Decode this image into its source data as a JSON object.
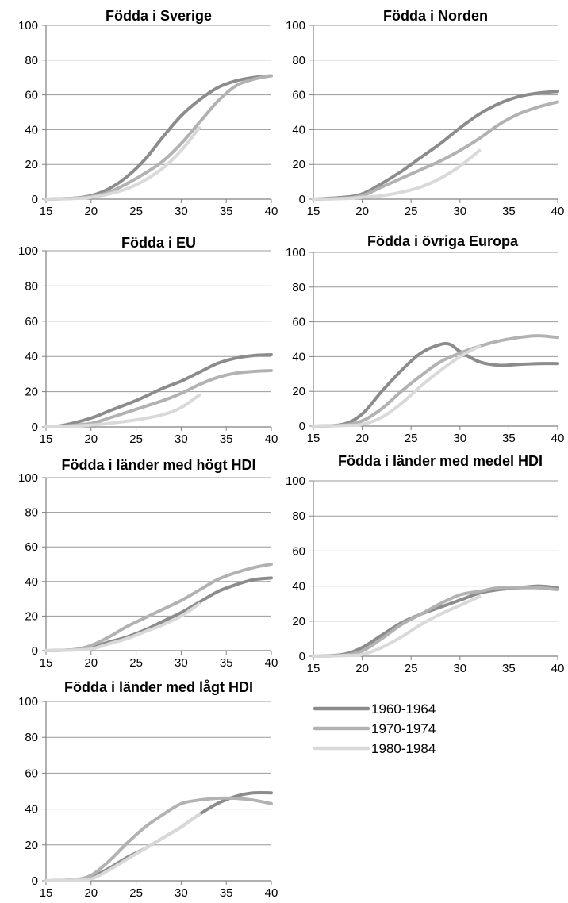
{
  "series_styles": [
    {
      "name": "1960-1964",
      "color": "#8c8c8c"
    },
    {
      "name": "1970-1974",
      "color": "#b2b2b2"
    },
    {
      "name": "1980-1984",
      "color": "#d9d9d9"
    }
  ],
  "legend": {
    "placement": "bottom-right",
    "items": [
      "1960-1964",
      "1970-1974",
      "1980-1984"
    ]
  },
  "chart_data": [
    {
      "type": "line",
      "title": "Födda i Sverige",
      "xlim": [
        15,
        40
      ],
      "ylim": [
        0,
        100
      ],
      "xticks": [
        15,
        20,
        25,
        30,
        35,
        40
      ],
      "yticks": [
        0,
        20,
        40,
        60,
        80,
        100
      ],
      "grid": true,
      "series": [
        {
          "name": "1960-1964",
          "x": [
            15,
            18,
            20,
            22,
            24,
            26,
            28,
            30,
            32,
            34,
            36,
            38,
            40
          ],
          "y": [
            0,
            0.5,
            2,
            6,
            13,
            23,
            36,
            48,
            57,
            64,
            68,
            70,
            71
          ]
        },
        {
          "name": "1970-1974",
          "x": [
            15,
            18,
            20,
            22,
            24,
            26,
            28,
            30,
            32,
            34,
            36,
            38,
            40
          ],
          "y": [
            0,
            0.5,
            1.5,
            4,
            9,
            15,
            22,
            32,
            44,
            56,
            65,
            69,
            71
          ]
        },
        {
          "name": "1980-1984",
          "x": [
            15,
            18,
            20,
            22,
            24,
            26,
            28,
            30,
            32
          ],
          "y": [
            0,
            0.3,
            1,
            3,
            6,
            11,
            18,
            28,
            41
          ]
        }
      ]
    },
    {
      "type": "line",
      "title": "Födda i Norden",
      "xlim": [
        15,
        40
      ],
      "ylim": [
        0,
        100
      ],
      "xticks": [
        15,
        20,
        25,
        30,
        35,
        40
      ],
      "yticks": [
        0,
        20,
        40,
        60,
        80,
        100
      ],
      "grid": true,
      "series": [
        {
          "name": "1960-1964",
          "x": [
            15,
            18,
            20,
            22,
            24,
            26,
            28,
            30,
            32,
            34,
            36,
            38,
            40
          ],
          "y": [
            0,
            1,
            3,
            9,
            16,
            24,
            32,
            41,
            49,
            55,
            59,
            61,
            62
          ]
        },
        {
          "name": "1970-1974",
          "x": [
            15,
            18,
            20,
            22,
            24,
            26,
            28,
            30,
            32,
            34,
            36,
            38,
            40
          ],
          "y": [
            0,
            0.5,
            2,
            7,
            12,
            17,
            22,
            28,
            35,
            43,
            49,
            53,
            56
          ]
        },
        {
          "name": "1980-1984",
          "x": [
            15,
            18,
            20,
            22,
            24,
            26,
            28,
            30,
            32
          ],
          "y": [
            0,
            0.3,
            1,
            2,
            4,
            7,
            12,
            19,
            28
          ]
        }
      ]
    },
    {
      "type": "line",
      "title": "Födda i EU",
      "xlim": [
        15,
        40
      ],
      "ylim": [
        0,
        100
      ],
      "xticks": [
        15,
        20,
        25,
        30,
        35,
        40
      ],
      "yticks": [
        0,
        20,
        40,
        60,
        80,
        100
      ],
      "grid": true,
      "series": [
        {
          "name": "1960-1964",
          "x": [
            15,
            17,
            20,
            22,
            25,
            28,
            30,
            32,
            34,
            36,
            38,
            40
          ],
          "y": [
            0,
            1,
            5,
            9,
            15,
            22,
            26,
            31,
            36,
            39,
            40.5,
            41
          ]
        },
        {
          "name": "1970-1974",
          "x": [
            15,
            17,
            20,
            22,
            25,
            28,
            30,
            32,
            34,
            36,
            38,
            40
          ],
          "y": [
            0,
            0.5,
            2,
            5,
            10,
            15,
            19,
            24,
            28,
            30.5,
            31.5,
            32
          ]
        },
        {
          "name": "1980-1984",
          "x": [
            15,
            17,
            20,
            22,
            25,
            28,
            30,
            32
          ],
          "y": [
            0,
            0.3,
            1,
            2,
            4,
            7,
            11,
            18
          ]
        }
      ]
    },
    {
      "type": "line",
      "title": "Födda i övriga Europa",
      "xlim": [
        15,
        40
      ],
      "ylim": [
        0,
        100
      ],
      "xticks": [
        15,
        20,
        25,
        30,
        35,
        40
      ],
      "yticks": [
        0,
        20,
        40,
        60,
        80,
        100
      ],
      "grid": true,
      "series": [
        {
          "name": "1960-1964",
          "x": [
            15,
            18,
            20,
            22,
            24,
            26,
            28,
            29,
            30,
            32,
            34,
            36,
            38,
            40
          ],
          "y": [
            0,
            1,
            7,
            20,
            32,
            42,
            47,
            47,
            43,
            37,
            35,
            35.5,
            36,
            36
          ]
        },
        {
          "name": "1970-1974",
          "x": [
            15,
            18,
            20,
            22,
            24,
            26,
            28,
            30,
            32,
            34,
            36,
            38,
            40
          ],
          "y": [
            0,
            0.5,
            3,
            10,
            20,
            29,
            37,
            42,
            46,
            49,
            51,
            52,
            51
          ]
        },
        {
          "name": "1980-1984",
          "x": [
            15,
            18,
            20,
            22,
            24,
            26,
            28,
            30,
            32
          ],
          "y": [
            0,
            0.3,
            1,
            5,
            13,
            23,
            32,
            40,
            46
          ]
        }
      ]
    },
    {
      "type": "line",
      "title": "Födda i länder med högt HDI",
      "xlim": [
        15,
        40
      ],
      "ylim": [
        0,
        100
      ],
      "xticks": [
        15,
        20,
        25,
        30,
        35,
        40
      ],
      "yticks": [
        0,
        20,
        40,
        60,
        80,
        100
      ],
      "grid": true,
      "series": [
        {
          "name": "1960-1964",
          "x": [
            15,
            18,
            20,
            22,
            24,
            26,
            28,
            30,
            32,
            34,
            36,
            38,
            40
          ],
          "y": [
            0,
            0.5,
            2,
            5,
            8,
            12,
            17,
            22,
            28,
            34,
            38,
            41,
            42
          ]
        },
        {
          "name": "1970-1974",
          "x": [
            15,
            18,
            20,
            22,
            24,
            26,
            28,
            30,
            32,
            34,
            36,
            38,
            40
          ],
          "y": [
            0,
            0.5,
            3,
            8,
            14,
            19,
            24,
            29,
            35,
            41,
            45,
            48,
            50
          ]
        },
        {
          "name": "1980-1984",
          "x": [
            15,
            18,
            20,
            22,
            24,
            26,
            28,
            30,
            32
          ],
          "y": [
            0,
            0.3,
            1,
            4,
            7,
            11,
            15,
            20,
            27
          ]
        }
      ]
    },
    {
      "type": "line",
      "title": "Födda i länder med medel HDI",
      "xlim": [
        15,
        40
      ],
      "ylim": [
        0,
        100
      ],
      "xticks": [
        15,
        20,
        25,
        30,
        35,
        40
      ],
      "yticks": [
        0,
        20,
        40,
        60,
        80,
        100
      ],
      "grid": true,
      "series": [
        {
          "name": "1960-1964",
          "x": [
            15,
            18,
            20,
            22,
            24,
            26,
            28,
            30,
            32,
            34,
            36,
            38,
            40
          ],
          "y": [
            0,
            1,
            5,
            12,
            19,
            24,
            28,
            32,
            36,
            38,
            39,
            40,
            39
          ]
        },
        {
          "name": "1970-1974",
          "x": [
            15,
            18,
            20,
            22,
            24,
            26,
            28,
            30,
            32,
            34,
            36,
            38,
            40
          ],
          "y": [
            0,
            0.5,
            3,
            10,
            18,
            24,
            30,
            35,
            37,
            39,
            39,
            39,
            38
          ]
        },
        {
          "name": "1980-1984",
          "x": [
            15,
            18,
            20,
            22,
            24,
            26,
            28,
            30,
            32
          ],
          "y": [
            0,
            0.3,
            1,
            5,
            11,
            18,
            24,
            29,
            34
          ]
        }
      ]
    },
    {
      "type": "line",
      "title": "Födda i länder med lågt HDI",
      "xlim": [
        15,
        40
      ],
      "ylim": [
        0,
        100
      ],
      "xticks": [
        15,
        20,
        25,
        30,
        35,
        40
      ],
      "yticks": [
        0,
        20,
        40,
        60,
        80,
        100
      ],
      "grid": true,
      "series": [
        {
          "name": "1960-1964",
          "x": [
            15,
            18,
            20,
            22,
            24,
            26,
            28,
            30,
            32,
            34,
            36,
            38,
            40
          ],
          "y": [
            0,
            0.5,
            2,
            7,
            13,
            18,
            24,
            30,
            37,
            43,
            47,
            49,
            49
          ]
        },
        {
          "name": "1970-1974",
          "x": [
            15,
            18,
            20,
            22,
            24,
            26,
            28,
            30,
            32,
            34,
            36,
            38,
            40
          ],
          "y": [
            0,
            0.5,
            3,
            11,
            21,
            30,
            37,
            43,
            45,
            46,
            46,
            45,
            43
          ]
        },
        {
          "name": "1980-1984",
          "x": [
            15,
            18,
            20,
            22,
            24,
            26,
            28,
            30,
            32
          ],
          "y": [
            0,
            0.3,
            1,
            6,
            12,
            18,
            24,
            30,
            37
          ]
        }
      ]
    }
  ]
}
